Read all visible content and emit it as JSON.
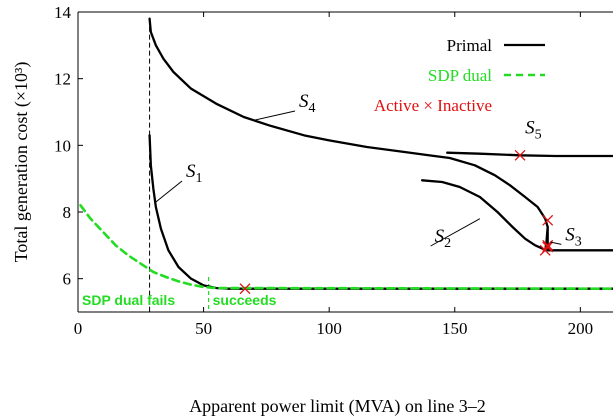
{
  "chart_data": {
    "type": "line",
    "xlabel": "Apparent power limit (MVA) on line 3–2",
    "ylabel": "Total generation cost (×10³)",
    "xlim": [
      0,
      213
    ],
    "ylim": [
      5,
      14
    ],
    "xticks": [
      0,
      50,
      100,
      150,
      200
    ],
    "yticks": [
      6,
      8,
      10,
      12,
      14
    ],
    "grid": false,
    "legend": {
      "placement": "top-right",
      "entries": [
        {
          "label": "Primal",
          "style": "solid",
          "color": "#000000"
        },
        {
          "label": "SDP dual",
          "style": "dashed",
          "color": "#22dd22"
        },
        {
          "label": "Active × Inactive",
          "marker": "x",
          "color": "#e01010"
        }
      ]
    },
    "colors": {
      "primal": "#000000",
      "sdp_dual": "#22dd22",
      "marker": "#e01010"
    },
    "annotations": {
      "region_left": "SDP dual fails",
      "region_right": "succeeds"
    },
    "series": [
      {
        "label": "S4",
        "kind": "primal",
        "points": [
          [
            28.5,
            13.8
          ],
          [
            29,
            13.4
          ],
          [
            31,
            13.0
          ],
          [
            34,
            12.6
          ],
          [
            38,
            12.2
          ],
          [
            45,
            11.7
          ],
          [
            55,
            11.25
          ],
          [
            66,
            10.85
          ],
          [
            76,
            10.6
          ],
          [
            90,
            10.3
          ],
          [
            100,
            10.15
          ],
          [
            115,
            9.95
          ],
          [
            130,
            9.8
          ],
          [
            140,
            9.7
          ],
          [
            148,
            9.62
          ],
          [
            158,
            9.4
          ],
          [
            166,
            9.1
          ],
          [
            172,
            8.8
          ],
          [
            178,
            8.45
          ],
          [
            183,
            8.15
          ],
          [
            186,
            7.8
          ],
          [
            187,
            7.55
          ]
        ]
      },
      {
        "label": "S1",
        "kind": "primal",
        "points": [
          [
            28.5,
            10.3
          ],
          [
            29,
            9.4
          ],
          [
            30,
            8.7
          ],
          [
            31,
            8.15
          ],
          [
            33,
            7.5
          ],
          [
            36,
            6.85
          ],
          [
            40,
            6.35
          ],
          [
            45,
            6.0
          ],
          [
            50,
            5.8
          ],
          [
            55,
            5.72
          ],
          [
            60,
            5.7
          ],
          [
            213,
            5.7
          ]
        ]
      },
      {
        "label": "S5",
        "kind": "primal",
        "points": [
          [
            147,
            9.78
          ],
          [
            160,
            9.75
          ],
          [
            176,
            9.7
          ],
          [
            190,
            9.68
          ],
          [
            213,
            9.68
          ]
        ]
      },
      {
        "label": "S2",
        "kind": "primal",
        "points": [
          [
            137,
            8.95
          ],
          [
            145,
            8.9
          ],
          [
            152,
            8.75
          ],
          [
            160,
            8.45
          ],
          [
            167,
            8.0
          ],
          [
            173,
            7.55
          ],
          [
            178,
            7.2
          ],
          [
            182,
            7.0
          ],
          [
            185,
            6.9
          ],
          [
            186,
            6.85
          ]
        ]
      },
      {
        "label": "S3",
        "kind": "primal",
        "points": [
          [
            186,
            6.85
          ],
          [
            186.5,
            7.1
          ],
          [
            187,
            7.55
          ],
          [
            187,
            6.85
          ],
          [
            213,
            6.85
          ]
        ]
      },
      {
        "label": "SDP dual",
        "kind": "dual",
        "points": [
          [
            1,
            8.2
          ],
          [
            5,
            7.8
          ],
          [
            10,
            7.4
          ],
          [
            15,
            7.0
          ],
          [
            20,
            6.7
          ],
          [
            25,
            6.45
          ],
          [
            30,
            6.2
          ],
          [
            35,
            6.05
          ],
          [
            40,
            5.92
          ],
          [
            45,
            5.82
          ],
          [
            50,
            5.75
          ],
          [
            55,
            5.72
          ],
          [
            213,
            5.7
          ]
        ]
      }
    ],
    "active_inactive_markers": [
      [
        66.5,
        5.7
      ],
      [
        176,
        9.7
      ],
      [
        187,
        7.75
      ],
      [
        186,
        6.85
      ],
      [
        187,
        7.0
      ],
      [
        187,
        6.95
      ]
    ],
    "divider_x": 28.5,
    "boundary_x": 52,
    "series_labels": [
      {
        "text": "S",
        "sub": "4",
        "x": 88,
        "y": 11.15,
        "leader_to": [
          70,
          10.75
        ]
      },
      {
        "text": "S",
        "sub": "1",
        "x": 43,
        "y": 9.05,
        "leader_to": [
          31,
          8.3
        ]
      },
      {
        "text": "S",
        "sub": "5",
        "x": 178,
        "y": 10.35,
        "leader_to": null
      },
      {
        "text": "S",
        "sub": "2",
        "x": 142,
        "y": 7.1,
        "leader_to": [
          160,
          7.8
        ]
      },
      {
        "text": "S",
        "sub": "3",
        "x": 194,
        "y": 7.15,
        "leader_to": [
          188,
          7.1
        ]
      }
    ]
  }
}
